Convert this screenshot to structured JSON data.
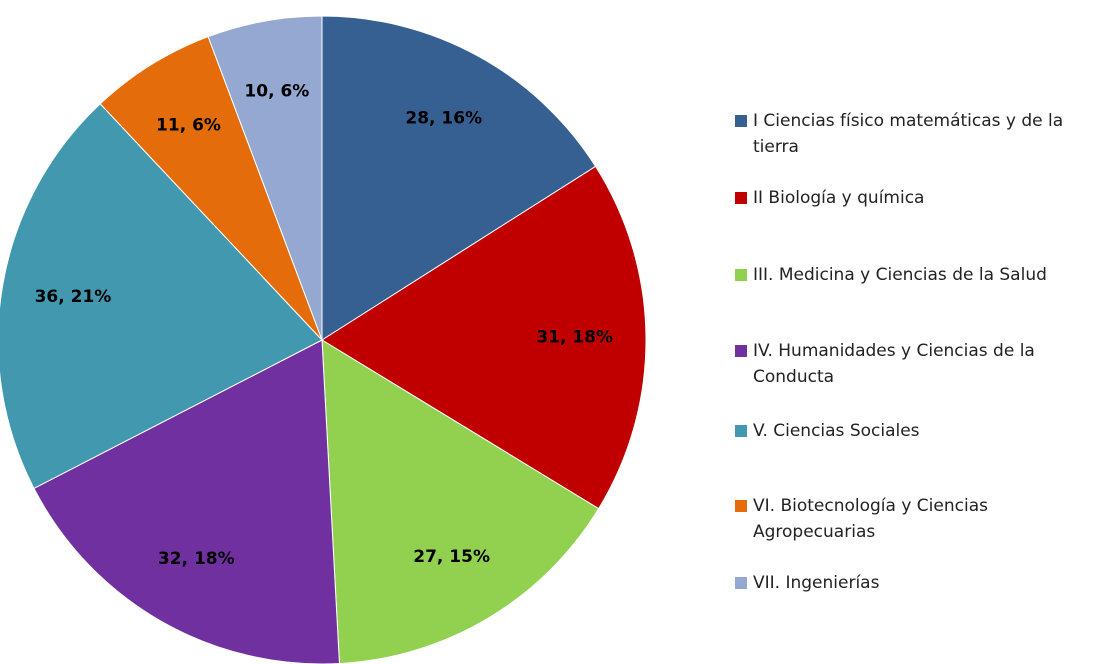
{
  "chart_data": {
    "type": "pie",
    "categories": [
      "I Ciencias físico matemáticas  y de la tierra",
      "II Biología y química",
      "III. Medicina y Ciencias de la Salud",
      "IV. Humanidades y Ciencias de la Conducta",
      "V. Ciencias Sociales",
      "VI. Biotecnología y Ciencias Agropecuarias",
      "VII. Ingenierías"
    ],
    "values": [
      28,
      31,
      27,
      32,
      36,
      11,
      10
    ],
    "value_labels": [
      "28, 16%",
      "31, 18%",
      "27, 15%",
      "32, 18%",
      "36, 21%",
      "11, 6%",
      "10, 6%"
    ],
    "colors": [
      "#376092",
      "#c00000",
      "#92d050",
      "#7030a0",
      "#4198af",
      "#e46c0a",
      "#95a8d2"
    ],
    "legend": "right"
  }
}
